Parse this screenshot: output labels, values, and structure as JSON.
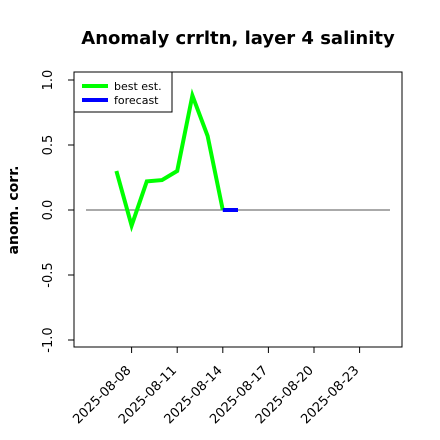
{
  "chart_data": {
    "type": "line",
    "title": "Anomaly crrltn, layer 4 salinity",
    "ylabel": "anom. corr.",
    "xlabel": "",
    "ylim": [
      -1.0,
      1.0
    ],
    "yticks": [
      -1.0,
      -0.5,
      0.0,
      0.5,
      1.0
    ],
    "ytick_labels": [
      "-1.0",
      "-0.5",
      "0.0",
      "0.5",
      "1.0"
    ],
    "xlim": [
      "2025-08-05",
      "2025-08-25"
    ],
    "xtick_labels": [
      "2025-08-08",
      "2025-08-11",
      "2025-08-14",
      "2025-08-17",
      "2025-08-20",
      "2025-08-23"
    ],
    "xtick_highlight": "2025-08-14",
    "reference_line": 0.0,
    "series": [
      {
        "name": "best est.",
        "color": "#00ff00",
        "points": [
          {
            "x": "2025-08-07",
            "y": 0.3
          },
          {
            "x": "2025-08-08",
            "y": -0.12
          },
          {
            "x": "2025-08-09",
            "y": 0.22
          },
          {
            "x": "2025-08-10",
            "y": 0.23
          },
          {
            "x": "2025-08-11",
            "y": 0.3
          },
          {
            "x": "2025-08-12",
            "y": 0.88
          },
          {
            "x": "2025-08-13",
            "y": 0.57
          },
          {
            "x": "2025-08-14",
            "y": 0.0
          }
        ]
      },
      {
        "name": "forecast",
        "color": "#0000ff",
        "points": [
          {
            "x": "2025-08-14",
            "y": 0.0
          },
          {
            "x": "2025-08-15",
            "y": 0.0
          }
        ]
      }
    ],
    "legend_position": "top-left",
    "colors": {
      "axis": "#000000",
      "reference_line": "#555555",
      "highlight_tick": "#228b22"
    }
  }
}
